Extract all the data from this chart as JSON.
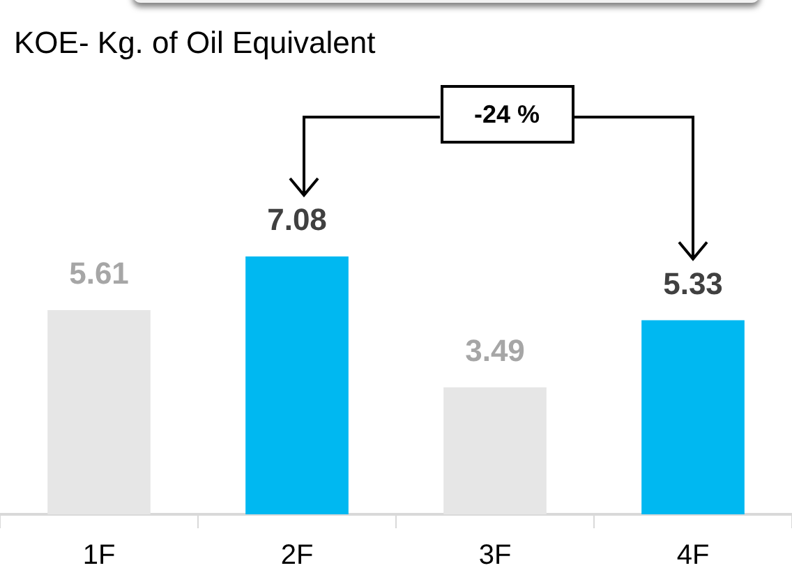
{
  "chart_data": {
    "type": "bar",
    "title": "KOE- Kg. of Oil Equivalent",
    "categories": [
      "1F",
      "2F",
      "3F",
      "4F"
    ],
    "values": [
      5.61,
      7.08,
      3.49,
      5.33
    ],
    "colors": [
      "#e6e6e6",
      "#00b8f1",
      "#e6e6e6",
      "#00b8f1"
    ],
    "data_labels": true,
    "annotations": [
      "-24 %"
    ],
    "grid": false,
    "legend": false
  }
}
